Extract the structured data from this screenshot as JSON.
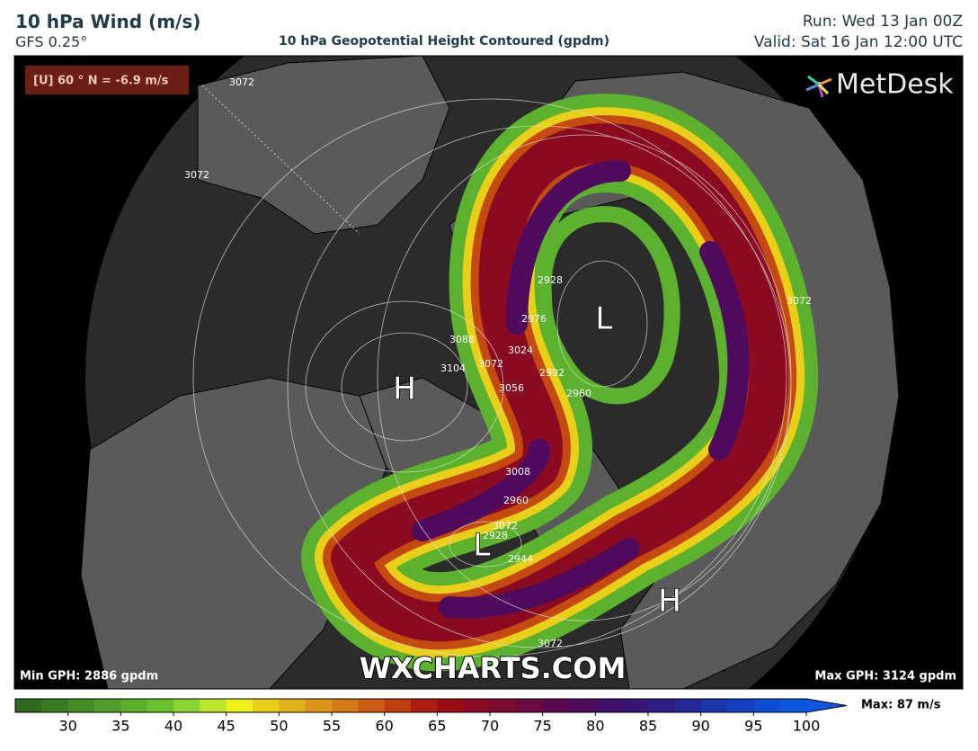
{
  "header": {
    "title": "10 hPa Wind (m/s)",
    "model": "GFS 0.25°",
    "subtitle": "10 hPa Geopotential Height Contoured (gpdm)",
    "run": "Run: Wed 13 Jan 00Z",
    "valid": "Valid: Sat 16 Jan 12:00 UTC"
  },
  "map": {
    "badge": "[U] 60 ° N = -6.9 m/s",
    "logo": "MetDesk",
    "watermark": "WXCHARTS.COM",
    "min_gph": "Min GPH: 2886 gpdm",
    "max_gph": "Max GPH: 3124 gpdm",
    "systems": [
      "H",
      "L",
      "L",
      "H"
    ],
    "contour_labels": [
      "3072",
      "3072",
      "3072",
      "3072",
      "3088",
      "3104",
      "3072",
      "3056",
      "3024",
      "2976",
      "2928",
      "2992",
      "2960",
      "3008",
      "2960",
      "2928",
      "2944",
      "3072"
    ]
  },
  "colorbar": {
    "range": [
      25,
      100
    ],
    "ticks": [
      30,
      35,
      40,
      45,
      50,
      55,
      60,
      65,
      70,
      75,
      80,
      85,
      90,
      95,
      100
    ],
    "max_label": "Max: 87 m/s",
    "colors": [
      "#2f6a1f",
      "#3a7b22",
      "#468c25",
      "#519d29",
      "#5cae2d",
      "#6cc130",
      "#8bd531",
      "#bde52a",
      "#eef01c",
      "#e8cf18",
      "#e2b018",
      "#dd9418",
      "#d67a17",
      "#cc5c14",
      "#bf3e10",
      "#ac1e0e",
      "#9a0c14",
      "#8a0a22",
      "#7c0a32",
      "#6c0842",
      "#5c0850",
      "#4e0a5c",
      "#420e68",
      "#361474",
      "#2c1c84",
      "#232898",
      "#1a34ac",
      "#1440c0",
      "#0e4cd2",
      "#0a58e2"
    ]
  }
}
